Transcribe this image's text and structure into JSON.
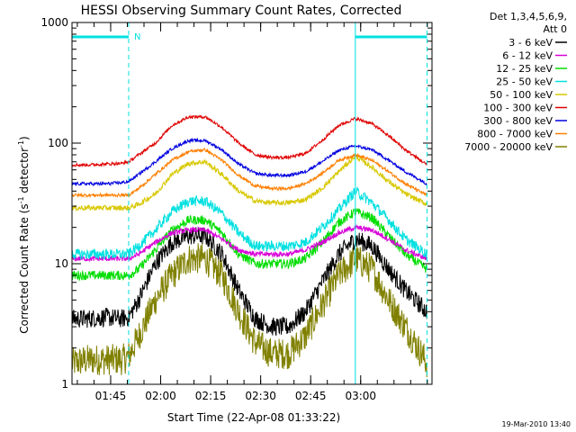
{
  "chart_data": {
    "type": "line",
    "title": "HESSI Observing Summary Count Rates, Corrected",
    "xlabel": "Start Time (22-Apr-08 01:33:22)",
    "ylabel_main": "Corrected Count Rate (s",
    "ylabel_sup1": "-1",
    "ylabel_mid": " detector",
    "ylabel_sup2": "-1",
    "ylabel_end": ")",
    "ylog": true,
    "ylim": [
      1,
      1000
    ],
    "xlim_minutes": [
      0,
      108
    ],
    "x_tick_labels": [
      "01:45",
      "02:00",
      "02:15",
      "02:30",
      "02:45",
      "03:00"
    ],
    "x_tick_minutes": [
      11.6,
      26.6,
      41.6,
      56.6,
      71.6,
      86.6
    ],
    "y_tick_labels": [
      "1",
      "10",
      "100",
      "1000"
    ],
    "y_tick_values": [
      1,
      10,
      100,
      1000
    ],
    "legend_header": [
      "Det 1,3,4,5,6,9,",
      "Att 0"
    ],
    "footer_date": "19-Mar-2010 13:40",
    "night_flag_label": "N",
    "night_segments": [
      [
        0,
        17
      ],
      [
        85,
        106.5
      ]
    ],
    "night_boundaries_minutes": [
      0,
      17,
      85,
      106.5
    ],
    "x_samples": [
      0,
      5,
      10,
      15,
      17,
      20,
      25,
      30,
      35,
      40,
      45,
      50,
      55,
      60,
      65,
      70,
      75,
      80,
      85,
      90,
      95,
      100,
      106.5
    ],
    "series": [
      {
        "name": "3 - 6 keV",
        "color": "#000000",
        "values": [
          3.5,
          3.5,
          3.6,
          3.5,
          3.6,
          5,
          10,
          15,
          17,
          17,
          12,
          6,
          3.5,
          3.0,
          3.0,
          4.0,
          7,
          12,
          16,
          14,
          9,
          6,
          4
        ]
      },
      {
        "name": "6 - 12 keV",
        "color": "#d800d8",
        "values": [
          11,
          11,
          11,
          11,
          11,
          12,
          15,
          18,
          19,
          19,
          16,
          13,
          12,
          12,
          12,
          13,
          15,
          18,
          20,
          19,
          16,
          13,
          11
        ]
      },
      {
        "name": "12 - 25 keV",
        "color": "#00dd00",
        "values": [
          8,
          8,
          8,
          8,
          8,
          9,
          13,
          19,
          23,
          23,
          18,
          12,
          10,
          10,
          10,
          11,
          15,
          22,
          27,
          24,
          17,
          12,
          9
        ]
      },
      {
        "name": "25 - 50 keV",
        "color": "#00e0e0",
        "values": [
          12,
          12,
          12,
          12,
          12,
          14,
          19,
          27,
          33,
          33,
          26,
          18,
          14,
          14,
          14,
          15,
          20,
          28,
          40,
          32,
          23,
          16,
          12
        ]
      },
      {
        "name": "50 - 100 keV",
        "color": "#d8c800",
        "values": [
          29,
          29,
          29,
          29,
          29,
          31,
          38,
          55,
          68,
          70,
          55,
          40,
          33,
          32,
          32,
          34,
          42,
          58,
          78,
          63,
          48,
          38,
          31
        ]
      },
      {
        "name": "100 - 300 keV",
        "color": "#e00000",
        "values": [
          66,
          66,
          67,
          68,
          70,
          80,
          100,
          140,
          165,
          165,
          135,
          100,
          80,
          76,
          76,
          82,
          105,
          140,
          160,
          145,
          115,
          88,
          66
        ]
      },
      {
        "name": "300 - 800 keV",
        "color": "#0000e0",
        "values": [
          46,
          46,
          46,
          47,
          48,
          55,
          70,
          90,
          105,
          105,
          88,
          67,
          56,
          54,
          54,
          58,
          70,
          87,
          95,
          88,
          72,
          58,
          46
        ]
      },
      {
        "name": "800 - 7000 keV",
        "color": "#ff7f00",
        "values": [
          37,
          37,
          37,
          37,
          37,
          42,
          55,
          72,
          85,
          88,
          72,
          54,
          44,
          42,
          42,
          46,
          56,
          72,
          80,
          72,
          58,
          46,
          37
        ]
      },
      {
        "name": "7000 - 20000 keV",
        "color": "#808000",
        "values": [
          1.5,
          1.6,
          1.6,
          1.6,
          1.7,
          2.5,
          5,
          8,
          11,
          11,
          8,
          4,
          2.2,
          1.8,
          1.8,
          2.5,
          4.5,
          8,
          11,
          9,
          5,
          3,
          1.5
        ]
      }
    ],
    "grid": false,
    "legend_position": "right"
  },
  "colors": {
    "axis": "#000000",
    "night_line": "#00e0e0"
  }
}
